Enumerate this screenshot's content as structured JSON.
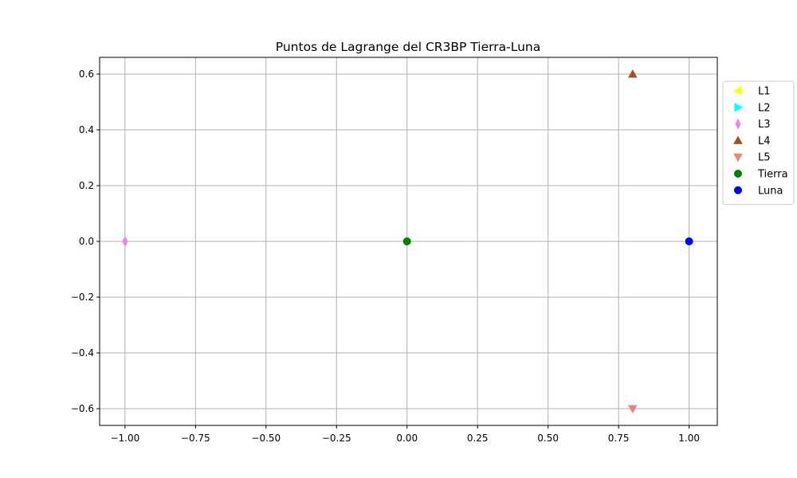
{
  "chart_data": {
    "type": "scatter",
    "title": "Puntos de Lagrange del CR3BP Tierra-Luna",
    "xlabel": "",
    "ylabel": "",
    "xlim": [
      -1.09,
      1.1
    ],
    "ylim": [
      -0.66,
      0.66
    ],
    "xticks": [
      -1.0,
      -0.75,
      -0.5,
      -0.25,
      0.0,
      0.25,
      0.5,
      0.75,
      1.0
    ],
    "xtick_labels": [
      "−1.00",
      "−0.75",
      "−0.50",
      "−0.25",
      "0.00",
      "0.25",
      "0.50",
      "0.75",
      "1.00"
    ],
    "yticks": [
      -0.6,
      -0.4,
      -0.2,
      0.0,
      0.2,
      0.4,
      0.6
    ],
    "ytick_labels": [
      "−0.6",
      "−0.4",
      "−0.2",
      "0.0",
      "0.2",
      "0.4",
      "0.6"
    ],
    "grid": true,
    "legend_position": "outside-right",
    "series": [
      {
        "name": "L1",
        "marker": "triangle-left",
        "color": "#ffff00",
        "points": []
      },
      {
        "name": "L2",
        "marker": "triangle-right",
        "color": "#00ffff",
        "points": []
      },
      {
        "name": "L3",
        "marker": "thin-diamond",
        "color": "#ee82ee",
        "points": [
          [
            -1.0,
            0.0
          ]
        ]
      },
      {
        "name": "L4",
        "marker": "triangle-up",
        "color": "#a0522d",
        "points": [
          [
            0.8,
            0.6
          ]
        ]
      },
      {
        "name": "L5",
        "marker": "triangle-down",
        "color": "#f08080",
        "points": [
          [
            0.8,
            -0.6
          ]
        ]
      },
      {
        "name": "Tierra",
        "marker": "circle",
        "color": "#008000",
        "points": [
          [
            0.0,
            0.0
          ]
        ]
      },
      {
        "name": "Luna",
        "marker": "circle",
        "color": "#0000ff",
        "points": [
          [
            1.0,
            0.0
          ]
        ]
      }
    ]
  }
}
